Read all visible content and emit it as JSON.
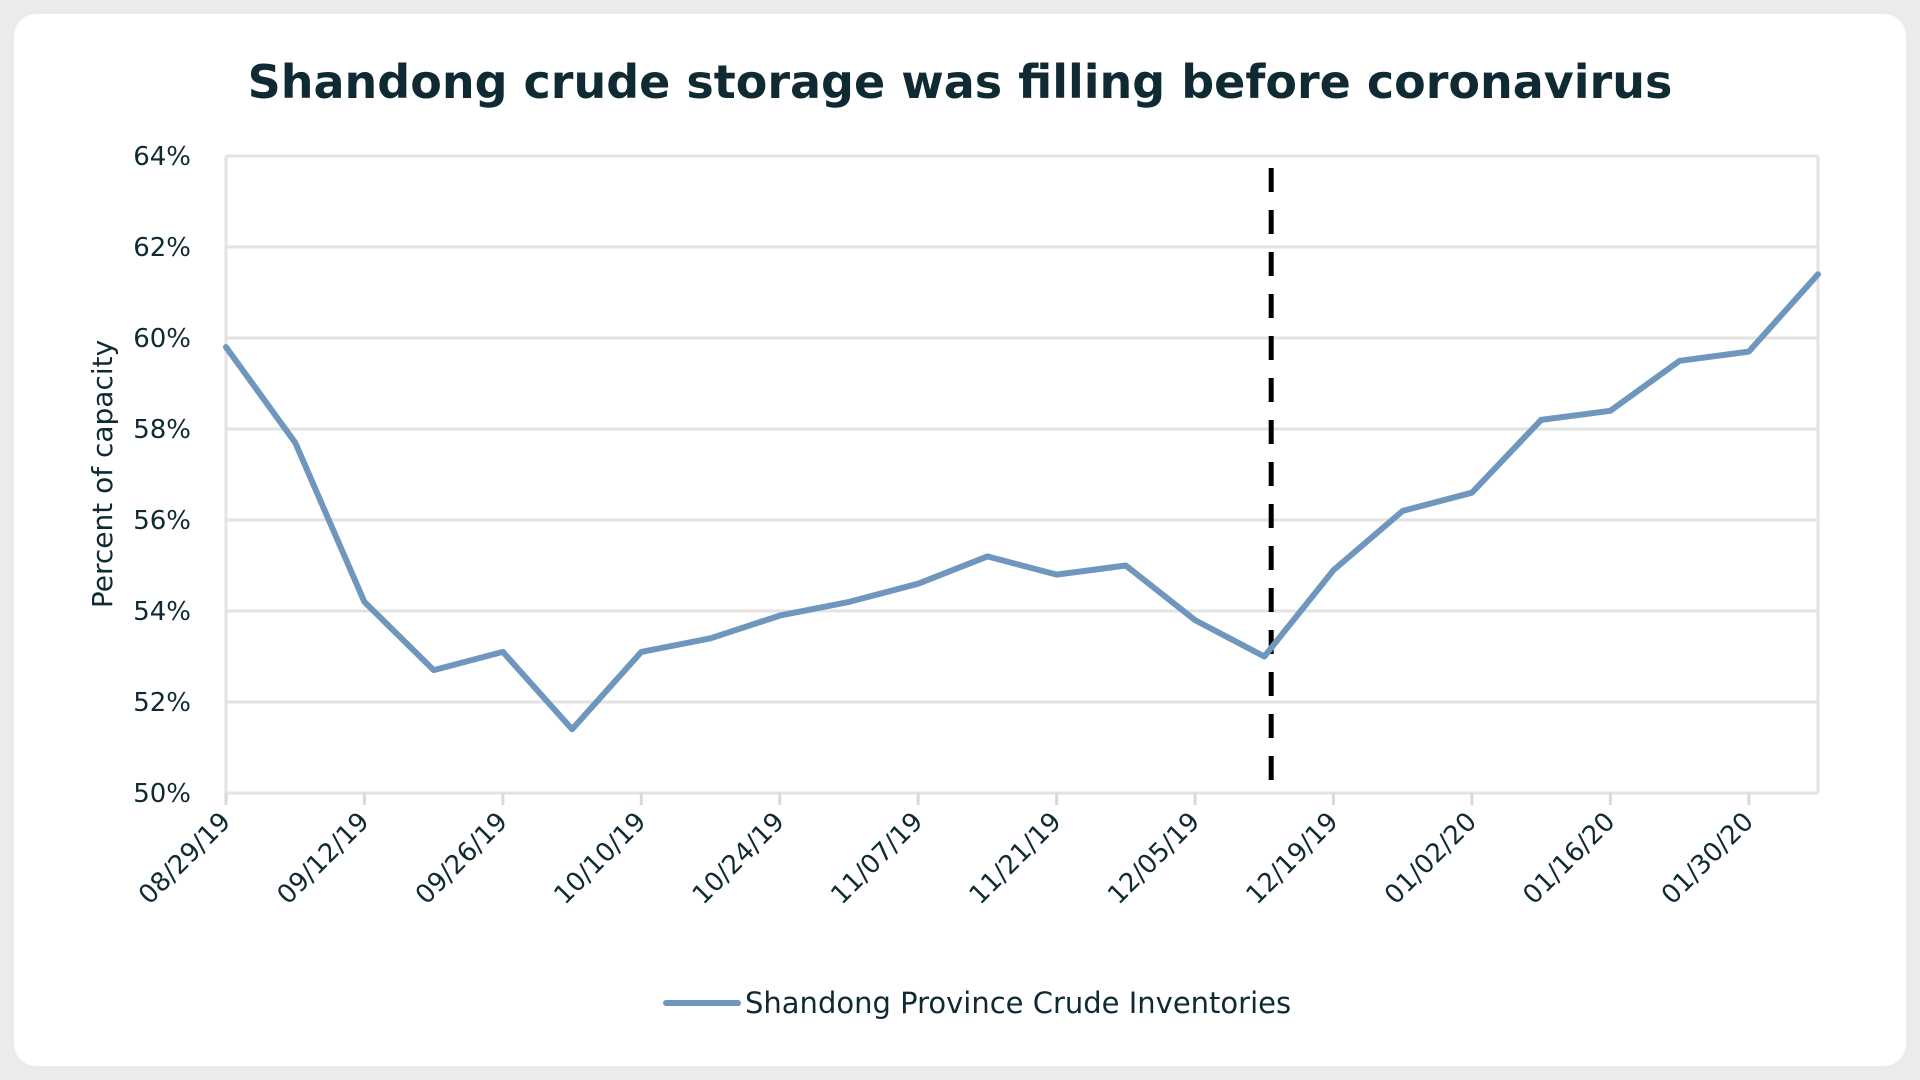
{
  "chart_data": {
    "type": "line",
    "title": "Shandong crude storage was filling before coronavirus",
    "xlabel": "",
    "ylabel": "Percent of capacity",
    "ylim": [
      50,
      64
    ],
    "yticks": [
      "50%",
      "52%",
      "54%",
      "56%",
      "58%",
      "60%",
      "62%",
      "64%"
    ],
    "ytick_values": [
      50,
      52,
      54,
      56,
      58,
      60,
      62,
      64
    ],
    "x_tick_labels": [
      "08/29/19",
      "09/12/19",
      "09/26/19",
      "10/10/19",
      "10/24/19",
      "11/07/19",
      "11/21/19",
      "12/05/19",
      "12/19/19",
      "01/02/20",
      "01/16/20",
      "01/30/20"
    ],
    "categories": [
      "08/29/19",
      "09/05/19",
      "09/12/19",
      "09/19/19",
      "09/26/19",
      "10/03/19",
      "10/10/19",
      "10/17/19",
      "10/24/19",
      "10/31/19",
      "11/07/19",
      "11/14/19",
      "11/21/19",
      "11/28/19",
      "12/05/19",
      "12/12/19",
      "12/19/19",
      "12/26/19",
      "01/02/20",
      "01/09/20",
      "01/16/20",
      "01/23/20",
      "01/30/20",
      "02/06/20"
    ],
    "series": [
      {
        "name": "Shandong Province Crude Inventories",
        "color": "#6f97bd",
        "values": [
          59.8,
          57.7,
          54.2,
          52.7,
          53.1,
          51.4,
          53.1,
          53.4,
          53.9,
          54.2,
          54.6,
          55.2,
          54.8,
          55.0,
          53.8,
          53.0,
          54.9,
          56.2,
          56.6,
          58.2,
          58.4,
          59.5,
          59.7,
          61.4
        ]
      }
    ],
    "vline": {
      "x_index": 15.1,
      "style": "dashed",
      "color": "#000000"
    },
    "grid": true,
    "legend": "bottom-center"
  }
}
